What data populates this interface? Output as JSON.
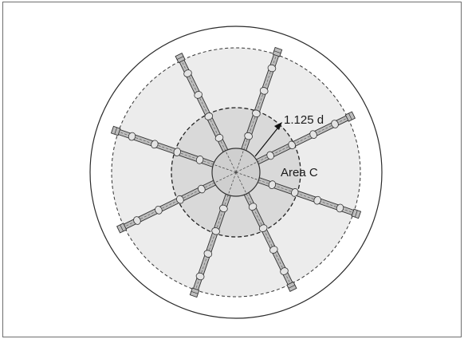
{
  "diagram": {
    "dimension_label": "1.125 d",
    "area_label": "Area C",
    "arm_count": 8
  },
  "colors": {
    "outline": "#2b2b2b",
    "outer_zone_fill": "#ececec",
    "inner_zone_fill": "#d9d9d9",
    "hub_fill": "#cfcfcf",
    "arm_fill": "#bdbdbd",
    "frame": "#6e6e6e"
  }
}
